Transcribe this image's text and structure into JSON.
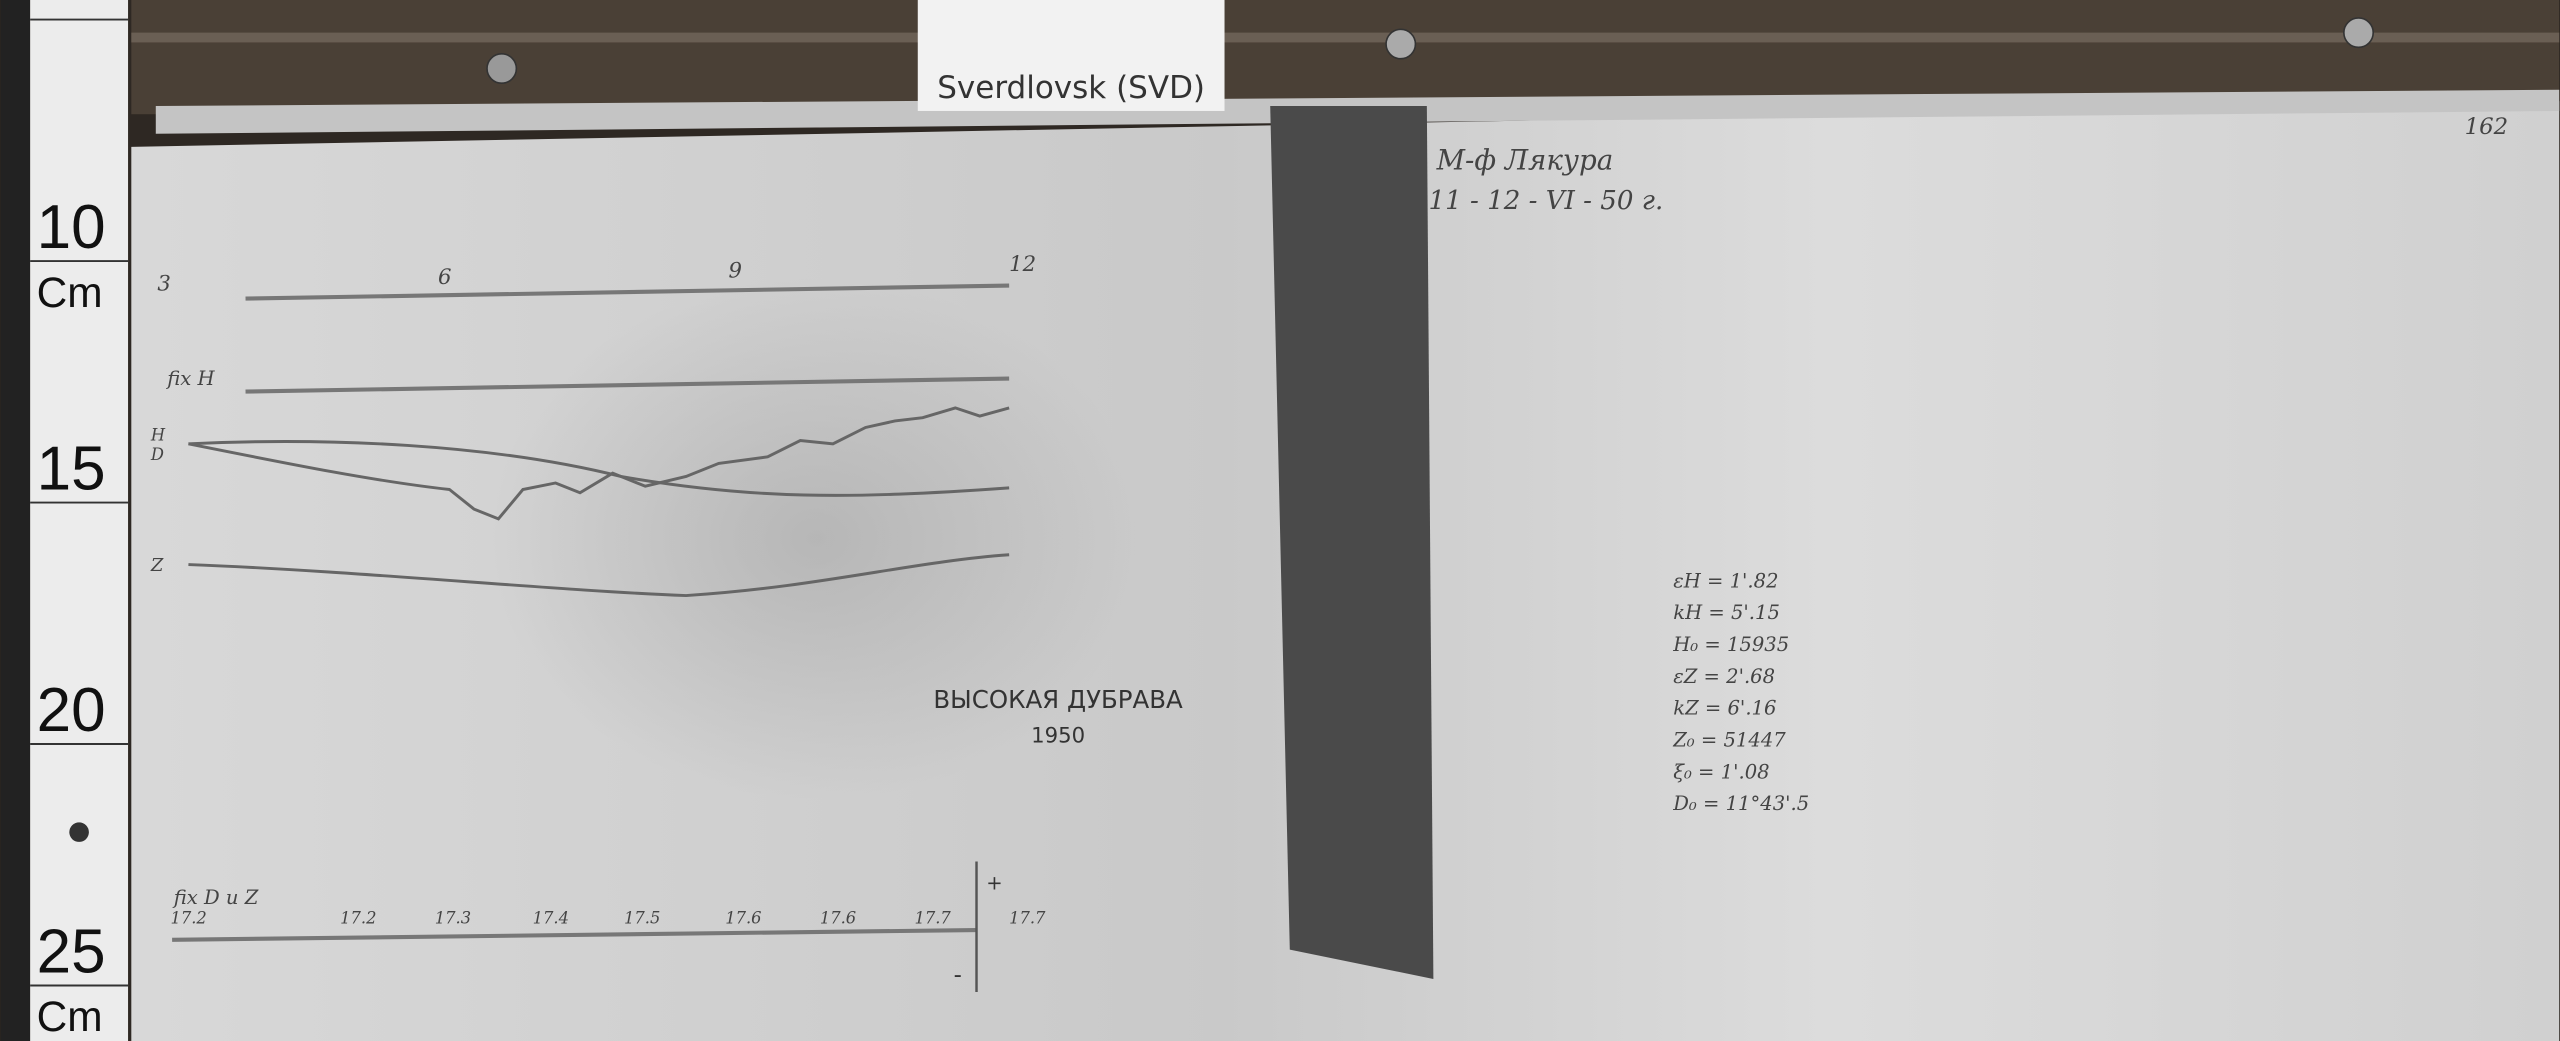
{
  "label": "Sverdlovsk (SVD)",
  "ruler": [
    "10",
    "Cm",
    "15",
    "20",
    "25",
    "Cm"
  ],
  "page_number": "162",
  "header_note": {
    "observer": "М-ф Лякура",
    "date": "11 - 12 - VI - 50 г."
  },
  "hour_scale": [
    "3",
    "6",
    "9",
    "12"
  ],
  "trace_labels": {
    "fix_h": "fix H",
    "h": "H",
    "d": "D",
    "z": "Z",
    "fix_dz": "fix D u Z"
  },
  "station": {
    "name": "ВЫСОКАЯ ДУБРАВА",
    "year": "1950"
  },
  "bottom_scale": [
    "17.2",
    "17.2",
    "17.3",
    "17.4",
    "17.5",
    "17.6",
    "17.6",
    "17.7",
    "17.7"
  ],
  "polarity": {
    "plus": "+",
    "minus": "-"
  },
  "constants": [
    "εH = 1'.82",
    "kH = 5'.15",
    "H₀ = 15935",
    "εZ = 2'.68",
    "kZ = 6'.16",
    "Z₀ = 51447",
    "ξ₀ = 1'.08",
    "D₀ = 11°43'.5"
  ]
}
